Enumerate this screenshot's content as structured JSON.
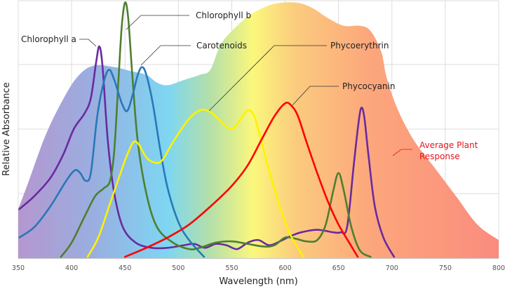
{
  "chart_data": {
    "type": "line",
    "title": "",
    "xlabel": "Wavelength (nm)",
    "ylabel": "Relative Absorbance",
    "xlim": [
      350,
      800
    ],
    "ylim": [
      0,
      1
    ],
    "x_ticks": [
      350,
      400,
      450,
      500,
      550,
      600,
      650,
      700,
      750,
      800
    ],
    "x_tick_labels": [
      "350",
      "400",
      "450",
      "500",
      "550",
      "600",
      "650",
      "700",
      "750",
      "800"
    ],
    "y_gridlines": [
      0.25,
      0.5,
      0.75,
      1.0
    ],
    "grid": true,
    "area_series": {
      "name": "Average Plant Response",
      "label_lines": [
        "Average Plant",
        "Response"
      ],
      "color": "#e8141e",
      "gradient_stops": [
        {
          "nm": 350,
          "color": "#b497cf"
        },
        {
          "nm": 420,
          "color": "#9aaee0"
        },
        {
          "nm": 490,
          "color": "#7dd6f2"
        },
        {
          "nm": 530,
          "color": "#b4e0a8"
        },
        {
          "nm": 570,
          "color": "#fbf77c"
        },
        {
          "nm": 610,
          "color": "#fbcb7e"
        },
        {
          "nm": 680,
          "color": "#fca67c"
        },
        {
          "nm": 800,
          "color": "#fa8c7e"
        }
      ],
      "points": [
        [
          350,
          0.19
        ],
        [
          360,
          0.3
        ],
        [
          375,
          0.47
        ],
        [
          390,
          0.6
        ],
        [
          405,
          0.7
        ],
        [
          420,
          0.745
        ],
        [
          440,
          0.74
        ],
        [
          455,
          0.725
        ],
        [
          470,
          0.71
        ],
        [
          480,
          0.68
        ],
        [
          490,
          0.67
        ],
        [
          505,
          0.69
        ],
        [
          520,
          0.71
        ],
        [
          530,
          0.73
        ],
        [
          540,
          0.83
        ],
        [
          555,
          0.9
        ],
        [
          570,
          0.95
        ],
        [
          590,
          0.985
        ],
        [
          610,
          0.99
        ],
        [
          625,
          0.97
        ],
        [
          640,
          0.93
        ],
        [
          655,
          0.9
        ],
        [
          670,
          0.9
        ],
        [
          680,
          0.88
        ],
        [
          690,
          0.8
        ],
        [
          695,
          0.7
        ],
        [
          705,
          0.58
        ],
        [
          720,
          0.46
        ],
        [
          740,
          0.35
        ],
        [
          760,
          0.24
        ],
        [
          780,
          0.13
        ],
        [
          800,
          0.07
        ]
      ]
    },
    "series": [
      {
        "name": "Chlorophyll a",
        "color": "#6a2aa0",
        "points": [
          [
            351,
            0.19
          ],
          [
            365,
            0.24
          ],
          [
            380,
            0.31
          ],
          [
            392,
            0.4
          ],
          [
            402,
            0.5
          ],
          [
            412,
            0.56
          ],
          [
            418,
            0.62
          ],
          [
            423,
            0.76
          ],
          [
            426,
            0.82
          ],
          [
            429,
            0.74
          ],
          [
            434,
            0.45
          ],
          [
            440,
            0.25
          ],
          [
            448,
            0.12
          ],
          [
            460,
            0.06
          ],
          [
            475,
            0.04
          ],
          [
            490,
            0.04
          ],
          [
            505,
            0.05
          ],
          [
            515,
            0.055
          ],
          [
            525,
            0.04
          ],
          [
            535,
            0.055
          ],
          [
            545,
            0.05
          ],
          [
            555,
            0.035
          ],
          [
            565,
            0.06
          ],
          [
            575,
            0.07
          ],
          [
            585,
            0.05
          ],
          [
            595,
            0.065
          ],
          [
            605,
            0.085
          ],
          [
            615,
            0.1
          ],
          [
            630,
            0.11
          ],
          [
            645,
            0.1
          ],
          [
            652,
            0.1
          ],
          [
            658,
            0.12
          ],
          [
            664,
            0.35
          ],
          [
            668,
            0.5
          ],
          [
            671,
            0.58
          ],
          [
            674,
            0.55
          ],
          [
            678,
            0.4
          ],
          [
            684,
            0.2
          ],
          [
            692,
            0.08
          ],
          [
            702,
            0.005
          ]
        ]
      },
      {
        "name": "Chlorophyll b",
        "color": "#4e7f2e",
        "points": [
          [
            390,
            0.005
          ],
          [
            400,
            0.06
          ],
          [
            412,
            0.16
          ],
          [
            422,
            0.24
          ],
          [
            430,
            0.27
          ],
          [
            436,
            0.3
          ],
          [
            440,
            0.42
          ],
          [
            444,
            0.7
          ],
          [
            447,
            0.9
          ],
          [
            450,
            0.99
          ],
          [
            453,
            0.93
          ],
          [
            457,
            0.7
          ],
          [
            462,
            0.45
          ],
          [
            470,
            0.25
          ],
          [
            480,
            0.12
          ],
          [
            495,
            0.06
          ],
          [
            510,
            0.035
          ],
          [
            520,
            0.04
          ],
          [
            535,
            0.06
          ],
          [
            550,
            0.065
          ],
          [
            565,
            0.055
          ],
          [
            580,
            0.045
          ],
          [
            590,
            0.05
          ],
          [
            600,
            0.08
          ],
          [
            610,
            0.075
          ],
          [
            620,
            0.065
          ],
          [
            630,
            0.07
          ],
          [
            638,
            0.13
          ],
          [
            645,
            0.26
          ],
          [
            650,
            0.33
          ],
          [
            655,
            0.26
          ],
          [
            662,
            0.12
          ],
          [
            670,
            0.03
          ],
          [
            680,
            0.005
          ]
        ]
      },
      {
        "name": "Carotenoids",
        "color": "#2878b8",
        "points": [
          [
            351,
            0.08
          ],
          [
            365,
            0.12
          ],
          [
            380,
            0.2
          ],
          [
            395,
            0.3
          ],
          [
            403,
            0.34
          ],
          [
            408,
            0.33
          ],
          [
            413,
            0.3
          ],
          [
            418,
            0.33
          ],
          [
            424,
            0.55
          ],
          [
            430,
            0.68
          ],
          [
            435,
            0.73
          ],
          [
            440,
            0.69
          ],
          [
            447,
            0.6
          ],
          [
            452,
            0.57
          ],
          [
            457,
            0.63
          ],
          [
            462,
            0.71
          ],
          [
            466,
            0.74
          ],
          [
            470,
            0.71
          ],
          [
            476,
            0.6
          ],
          [
            483,
            0.42
          ],
          [
            490,
            0.27
          ],
          [
            500,
            0.14
          ],
          [
            510,
            0.07
          ],
          [
            524,
            0.005
          ]
        ]
      },
      {
        "name": "Phycoerythrin",
        "color": "#fff200",
        "points": [
          [
            415,
            0.005
          ],
          [
            425,
            0.08
          ],
          [
            435,
            0.2
          ],
          [
            445,
            0.32
          ],
          [
            452,
            0.4
          ],
          [
            458,
            0.45
          ],
          [
            463,
            0.44
          ],
          [
            470,
            0.39
          ],
          [
            478,
            0.37
          ],
          [
            485,
            0.38
          ],
          [
            495,
            0.45
          ],
          [
            510,
            0.54
          ],
          [
            522,
            0.575
          ],
          [
            532,
            0.56
          ],
          [
            542,
            0.52
          ],
          [
            550,
            0.5
          ],
          [
            557,
            0.53
          ],
          [
            564,
            0.57
          ],
          [
            570,
            0.56
          ],
          [
            576,
            0.48
          ],
          [
            585,
            0.34
          ],
          [
            595,
            0.2
          ],
          [
            605,
            0.09
          ],
          [
            617,
            0.005
          ]
        ]
      },
      {
        "name": "Phycocyanin",
        "color": "#ff0000",
        "points": [
          [
            450,
            0.005
          ],
          [
            470,
            0.04
          ],
          [
            490,
            0.08
          ],
          [
            510,
            0.13
          ],
          [
            530,
            0.2
          ],
          [
            550,
            0.28
          ],
          [
            565,
            0.36
          ],
          [
            578,
            0.46
          ],
          [
            590,
            0.55
          ],
          [
            600,
            0.6
          ],
          [
            606,
            0.59
          ],
          [
            612,
            0.55
          ],
          [
            620,
            0.45
          ],
          [
            630,
            0.33
          ],
          [
            640,
            0.22
          ],
          [
            650,
            0.13
          ],
          [
            660,
            0.06
          ],
          [
            668,
            0.005
          ]
        ]
      }
    ],
    "annotations": [
      {
        "text": "Chlorophyll a",
        "series": "Chlorophyll a"
      },
      {
        "text": "Chlorophyll b",
        "series": "Chlorophyll b"
      },
      {
        "text": "Carotenoids",
        "series": "Carotenoids"
      },
      {
        "text": "Phycoerythrin",
        "series": "Phycoerythrin"
      },
      {
        "text": "Phycocyanin",
        "series": "Phycocyanin"
      },
      {
        "text": "Average Plant Response",
        "series": "Average Plant Response"
      }
    ]
  }
}
